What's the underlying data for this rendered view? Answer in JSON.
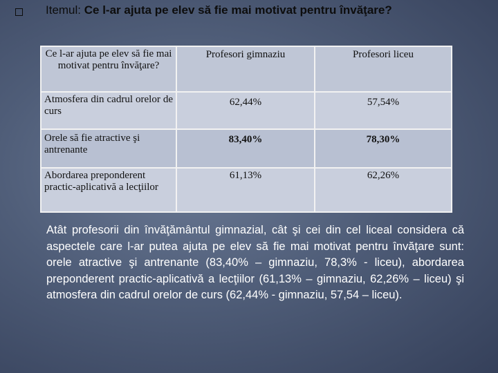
{
  "heading": {
    "prefix": "Itemul: ",
    "question": "Ce l-ar ajuta pe elev să fie mai motivat pentru învăţare?"
  },
  "table": {
    "headers": [
      "Ce l-ar ajuta pe elev să fie mai motivat pentru învăţare?",
      "Profesori gimnaziu",
      "Profesori liceu"
    ],
    "rows": [
      {
        "criterion": "Atmosfera din cadrul orelor de curs",
        "gimnaziu": "62,44%",
        "liceu": "57,54%"
      },
      {
        "criterion": "Orele să fie atractive şi antrenante",
        "gimnaziu": "83,40%",
        "liceu": "78,30%"
      },
      {
        "criterion": "Abordarea preponderent practic-aplicativă a lecţiilor",
        "gimnaziu": "61,13%",
        "liceu": "62,26%"
      }
    ]
  },
  "summary": "Atât profesorii din învăţământul gimnazial, cât şi cei din cel liceal considera că aspectele care l-ar putea ajuta pe elev să fie mai motivat pentru învăţare sunt: orele atractive şi antrenante (83,40% – gimnaziu, 78,3% - liceu), abordarea preponderent practic-aplicativă a lecţiilor (61,13% – gimnaziu, 62,26% – liceu) şi atmosfera din cadrul orelor de curs (62,44% - gimnaziu, 57,54 – liceu)."
}
